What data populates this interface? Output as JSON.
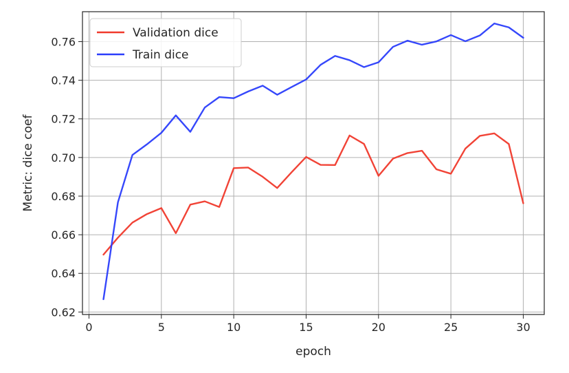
{
  "chart_data": {
    "type": "line",
    "title": "",
    "xlabel": "epoch",
    "ylabel": "Metric: dice coef",
    "xlim": [
      -0.45,
      31.45
    ],
    "ylim": [
      0.6187,
      0.7755
    ],
    "xticks": [
      0,
      5,
      10,
      15,
      20,
      25,
      30
    ],
    "yticks": [
      0.62,
      0.64,
      0.66,
      0.68,
      0.7,
      0.72,
      0.74,
      0.76
    ],
    "xtick_labels": [
      "0",
      "5",
      "10",
      "15",
      "20",
      "25",
      "30"
    ],
    "ytick_labels": [
      "0.62",
      "0.64",
      "0.66",
      "0.68",
      "0.70",
      "0.72",
      "0.74",
      "0.76"
    ],
    "grid": true,
    "legend_position": "top-left",
    "x": [
      1,
      2,
      3,
      4,
      5,
      6,
      7,
      8,
      9,
      10,
      11,
      12,
      13,
      14,
      15,
      16,
      17,
      18,
      19,
      20,
      21,
      22,
      23,
      24,
      25,
      26,
      27,
      28,
      29,
      30
    ],
    "series": [
      {
        "name": "Validation dice",
        "color": "#f0392b",
        "values": [
          0.6497,
          0.6585,
          0.6663,
          0.6707,
          0.6738,
          0.6608,
          0.6756,
          0.6773,
          0.6744,
          0.6945,
          0.6948,
          0.69,
          0.6842,
          0.6924,
          0.7003,
          0.6962,
          0.6961,
          0.7114,
          0.707,
          0.6905,
          0.6994,
          0.7023,
          0.7035,
          0.6939,
          0.6916,
          0.7046,
          0.7112,
          0.7125,
          0.707,
          0.6763
        ]
      },
      {
        "name": "Train dice",
        "color": "#2a3dfb",
        "values": [
          0.6266,
          0.6768,
          0.7013,
          0.7068,
          0.7128,
          0.7218,
          0.7133,
          0.7259,
          0.7313,
          0.7307,
          0.7342,
          0.7372,
          0.7325,
          0.7365,
          0.7404,
          0.748,
          0.7526,
          0.7504,
          0.7468,
          0.7493,
          0.7573,
          0.7605,
          0.7584,
          0.7601,
          0.7634,
          0.7602,
          0.7632,
          0.7694,
          0.7674,
          0.762
        ]
      }
    ]
  }
}
